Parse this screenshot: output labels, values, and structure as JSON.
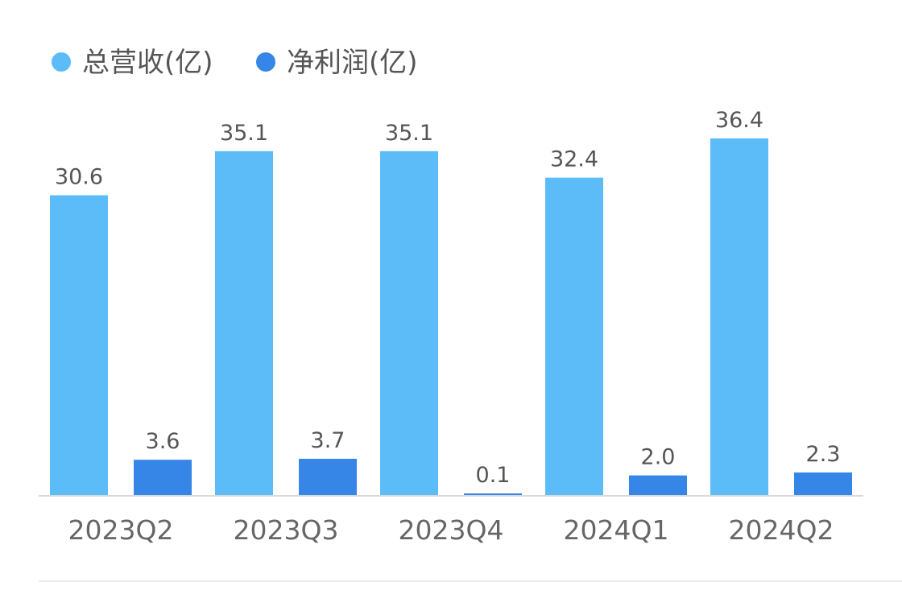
{
  "chart_data": {
    "type": "bar",
    "categories": [
      "2023Q2",
      "2023Q3",
      "2023Q4",
      "2024Q1",
      "2024Q2"
    ],
    "series": [
      {
        "name": "总营收(亿)",
        "values": [
          30.6,
          35.1,
          35.1,
          32.4,
          36.4
        ],
        "color": "#5bbcf8"
      },
      {
        "name": "净利润(亿)",
        "values": [
          3.6,
          3.7,
          0.1,
          2.0,
          2.3
        ],
        "color": "#3686e8"
      }
    ],
    "ylim": [
      0,
      36.4
    ],
    "grid": false,
    "legend_position": "top-left",
    "data_labels": true
  }
}
